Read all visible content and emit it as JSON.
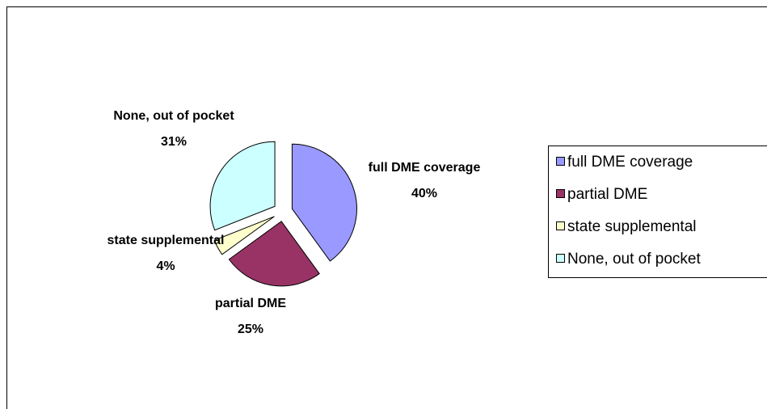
{
  "chart_data": {
    "type": "pie",
    "categories": [
      "full DME coverage",
      "partial DME",
      "state supplemental",
      "None, out of pocket"
    ],
    "values": [
      40,
      25,
      4,
      31
    ],
    "value_labels": [
      "40%",
      "25%",
      "4%",
      "31%"
    ],
    "colors": [
      "#9999ff",
      "#993366",
      "#ffffcc",
      "#ccffff"
    ],
    "legend": "right"
  }
}
